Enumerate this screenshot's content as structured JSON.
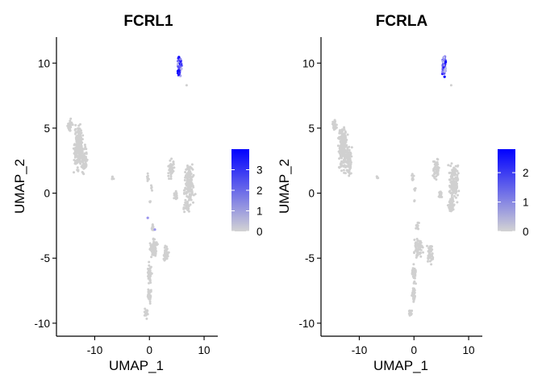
{
  "chart_data": [
    {
      "type": "scatter",
      "title": "FCRL1",
      "xlabel": "UMAP_1",
      "ylabel": "UMAP_2",
      "xlim": [
        -17,
        12.5
      ],
      "ylim": [
        -11,
        12
      ],
      "xticks": [
        -10,
        0,
        10
      ],
      "xtick_labels": [
        "-10",
        "0",
        "10"
      ],
      "yticks": [
        -10,
        -5,
        0,
        5,
        10
      ],
      "ytick_labels": [
        "-10",
        "-5",
        "0",
        "5",
        "10"
      ],
      "color_scale": {
        "low": "#d3d3d3",
        "high": "#0000ff",
        "min": 0,
        "max": 4.0
      },
      "legend": {
        "position": "right",
        "ticks": [
          0,
          1,
          2,
          3
        ],
        "tick_labels": [
          "0",
          "1",
          "2",
          "3"
        ]
      },
      "grid": false
    },
    {
      "type": "scatter",
      "title": "FCRLA",
      "xlabel": "UMAP_1",
      "ylabel": "UMAP_2",
      "xlim": [
        -17,
        12.5
      ],
      "ylim": [
        -11,
        12
      ],
      "xticks": [
        -10,
        0,
        10
      ],
      "xtick_labels": [
        "-10",
        "0",
        "10"
      ],
      "yticks": [
        -10,
        -5,
        0,
        5,
        10
      ],
      "ytick_labels": [
        "-10",
        "-5",
        "0",
        "5",
        "10"
      ],
      "color_scale": {
        "low": "#d3d3d3",
        "high": "#0000ff",
        "min": 0,
        "max": 2.8
      },
      "legend": {
        "position": "right",
        "ticks": [
          0,
          1,
          2
        ],
        "tick_labels": [
          "0",
          "1",
          "2"
        ]
      },
      "grid": false
    }
  ]
}
